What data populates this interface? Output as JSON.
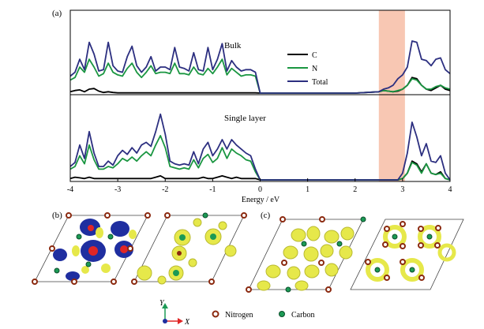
{
  "panel_labels": {
    "a": "(a)",
    "b": "(b)",
    "c": "(c)"
  },
  "chart_data": {
    "type": "line",
    "xlabel": "Energy / eV",
    "xlim": [
      -4,
      4
    ],
    "x_ticks": [
      "-4",
      "-3",
      "-2",
      "-1",
      "0",
      "1",
      "2",
      "3",
      "4"
    ],
    "ylabel": "",
    "highlight_band": {
      "x0": 2.5,
      "x1": 3.05,
      "color": "#f6b49a"
    },
    "legend": {
      "position": "center-right of top panel",
      "entries": [
        "C",
        "N",
        "Total"
      ]
    },
    "panels": [
      {
        "label": "Bulk",
        "ylim": [
          0,
          6
        ],
        "x": [
          -4.0,
          -3.9,
          -3.8,
          -3.7,
          -3.6,
          -3.5,
          -3.4,
          -3.3,
          -3.2,
          -3.1,
          -3.0,
          -2.9,
          -2.8,
          -2.7,
          -2.6,
          -2.5,
          -2.4,
          -2.3,
          -2.2,
          -2.1,
          -2.0,
          -1.9,
          -1.8,
          -1.7,
          -1.6,
          -1.5,
          -1.4,
          -1.3,
          -1.2,
          -1.1,
          -1.0,
          -0.9,
          -0.8,
          -0.7,
          -0.6,
          -0.5,
          -0.4,
          -0.3,
          -0.2,
          -0.1,
          0.0,
          0.5,
          1.0,
          1.5,
          2.0,
          2.5,
          2.6,
          2.7,
          2.8,
          2.9,
          3.0,
          3.1,
          3.2,
          3.3,
          3.4,
          3.5,
          3.6,
          3.7,
          3.8,
          3.9,
          4.0
        ],
        "series": [
          {
            "name": "C",
            "color": "#000000",
            "values": [
              0.1,
              0.2,
              0.25,
              0.1,
              0.3,
              0.35,
              0.15,
              0.05,
              0.1,
              0.05,
              0.02,
              0.02,
              0.02,
              0.02,
              0.02,
              0.02,
              0.02,
              0.02,
              0.02,
              0.02,
              0.02,
              0.02,
              0.02,
              0.02,
              0.02,
              0.02,
              0.02,
              0.02,
              0.02,
              0.02,
              0.02,
              0.02,
              0.02,
              0.02,
              0.02,
              0.02,
              0.02,
              0.02,
              0.02,
              0.02,
              0.0,
              0.0,
              0.0,
              0.0,
              0.0,
              0.1,
              0.2,
              0.15,
              0.1,
              0.15,
              0.3,
              0.6,
              1.2,
              1.1,
              0.6,
              0.3,
              0.2,
              0.4,
              0.6,
              0.3,
              0.2
            ]
          },
          {
            "name": "N",
            "color": "#1a9641",
            "values": [
              1.0,
              1.2,
              2.0,
              1.6,
              2.6,
              2.0,
              1.3,
              1.5,
              2.3,
              1.6,
              1.4,
              1.3,
              1.9,
              2.3,
              1.6,
              1.2,
              1.6,
              2.1,
              1.5,
              1.6,
              1.6,
              1.5,
              2.3,
              1.5,
              1.5,
              1.4,
              2.0,
              1.5,
              1.4,
              1.9,
              1.5,
              2.0,
              2.6,
              1.4,
              1.9,
              1.6,
              1.3,
              1.4,
              1.4,
              1.3,
              0.0,
              0.0,
              0.0,
              0.0,
              0.0,
              0.1,
              0.2,
              0.15,
              0.1,
              0.2,
              0.3,
              0.6,
              1.1,
              1.0,
              0.6,
              0.3,
              0.3,
              0.5,
              0.6,
              0.4,
              0.3
            ]
          },
          {
            "name": "Total",
            "color": "#2c2f80",
            "values": [
              1.3,
              1.6,
              2.6,
              1.8,
              3.9,
              3.0,
              1.7,
              1.8,
              3.9,
              2.1,
              1.7,
              1.6,
              2.8,
              3.6,
              2.1,
              1.6,
              2.0,
              2.8,
              1.7,
              2.0,
              2.0,
              1.8,
              3.5,
              2.0,
              1.9,
              1.7,
              3.1,
              1.8,
              1.7,
              3.5,
              1.8,
              2.6,
              3.8,
              1.7,
              2.5,
              2.0,
              1.7,
              1.8,
              1.8,
              1.6,
              0.0,
              0.0,
              0.0,
              0.0,
              0.0,
              0.1,
              0.3,
              0.4,
              0.6,
              1.1,
              1.4,
              2.0,
              4.0,
              3.9,
              2.6,
              2.5,
              2.1,
              2.6,
              2.7,
              1.8,
              1.5
            ]
          }
        ]
      },
      {
        "label": "Single layer",
        "ylim": [
          0,
          6
        ],
        "x": [
          -4.0,
          -3.9,
          -3.8,
          -3.7,
          -3.6,
          -3.5,
          -3.4,
          -3.3,
          -3.2,
          -3.1,
          -3.0,
          -2.9,
          -2.8,
          -2.7,
          -2.6,
          -2.5,
          -2.4,
          -2.3,
          -2.2,
          -2.1,
          -2.0,
          -1.9,
          -1.8,
          -1.7,
          -1.6,
          -1.5,
          -1.4,
          -1.3,
          -1.2,
          -1.1,
          -1.0,
          -0.9,
          -0.8,
          -0.7,
          -0.6,
          -0.5,
          -0.4,
          -0.3,
          -0.2,
          -0.1,
          0.0,
          0.5,
          1.0,
          1.5,
          2.0,
          2.5,
          2.6,
          2.7,
          2.8,
          2.9,
          3.0,
          3.1,
          3.2,
          3.3,
          3.4,
          3.5,
          3.6,
          3.7,
          3.8,
          3.9,
          4.0
        ],
        "series": [
          {
            "name": "C",
            "color": "#000000",
            "values": [
              0.1,
              0.2,
              0.15,
              0.1,
              0.2,
              0.1,
              0.1,
              0.1,
              0.1,
              0.1,
              0.1,
              0.1,
              0.1,
              0.1,
              0.1,
              0.1,
              0.1,
              0.1,
              0.2,
              0.3,
              0.1,
              0.1,
              0.1,
              0.1,
              0.1,
              0.1,
              0.1,
              0.1,
              0.2,
              0.1,
              0.1,
              0.2,
              0.3,
              0.2,
              0.1,
              0.2,
              0.1,
              0.1,
              0.1,
              0.1,
              0.0,
              0.0,
              0.0,
              0.0,
              0.0,
              0.0,
              0.0,
              0.0,
              0.0,
              0.0,
              0.1,
              0.5,
              1.4,
              1.2,
              0.6,
              1.2,
              0.5,
              0.4,
              0.6,
              0.1,
              0.0
            ]
          },
          {
            "name": "N",
            "color": "#1a9641",
            "values": [
              0.8,
              1.0,
              1.8,
              1.2,
              2.6,
              1.5,
              0.8,
              0.8,
              1.0,
              0.9,
              1.2,
              1.6,
              1.4,
              1.7,
              1.4,
              1.8,
              2.1,
              1.8,
              2.6,
              3.3,
              2.4,
              1.0,
              0.9,
              0.8,
              0.9,
              0.8,
              1.5,
              0.9,
              1.6,
              1.9,
              1.3,
              1.6,
              2.4,
              1.6,
              2.3,
              2.0,
              1.8,
              1.5,
              1.4,
              0.6,
              0.0,
              0.0,
              0.0,
              0.0,
              0.0,
              0.0,
              0.0,
              0.0,
              0.0,
              0.0,
              0.1,
              0.5,
              1.3,
              1.1,
              0.5,
              1.2,
              0.5,
              0.4,
              0.5,
              0.1,
              0.0
            ]
          },
          {
            "name": "Total",
            "color": "#2c2f80",
            "values": [
              1.0,
              1.3,
              2.6,
              1.6,
              3.6,
              2.0,
              1.0,
              1.0,
              1.4,
              1.1,
              1.8,
              2.2,
              1.9,
              2.4,
              2.0,
              2.6,
              2.8,
              2.5,
              3.6,
              4.9,
              3.4,
              1.4,
              1.2,
              1.1,
              1.2,
              1.1,
              2.1,
              1.2,
              2.3,
              2.8,
              1.8,
              2.3,
              3.0,
              2.3,
              3.0,
              2.6,
              2.3,
              2.0,
              1.8,
              0.8,
              0.0,
              0.0,
              0.0,
              0.0,
              0.0,
              0.0,
              0.0,
              0.0,
              0.0,
              0.0,
              0.5,
              2.0,
              4.3,
              3.2,
              1.8,
              2.7,
              1.4,
              1.3,
              1.8,
              0.5,
              0.0
            ]
          }
        ]
      }
    ]
  },
  "legend_bottom": {
    "axis_y": "Y",
    "axis_x": "X",
    "nitrogen": "Nitrogen",
    "carbon": "Carbon"
  },
  "colors": {
    "nitrogen": "#8b2a10",
    "carbon": "#1c9a55",
    "lobe": "#e6e84a",
    "blue": "#1f2ea0",
    "red": "#e02626"
  }
}
